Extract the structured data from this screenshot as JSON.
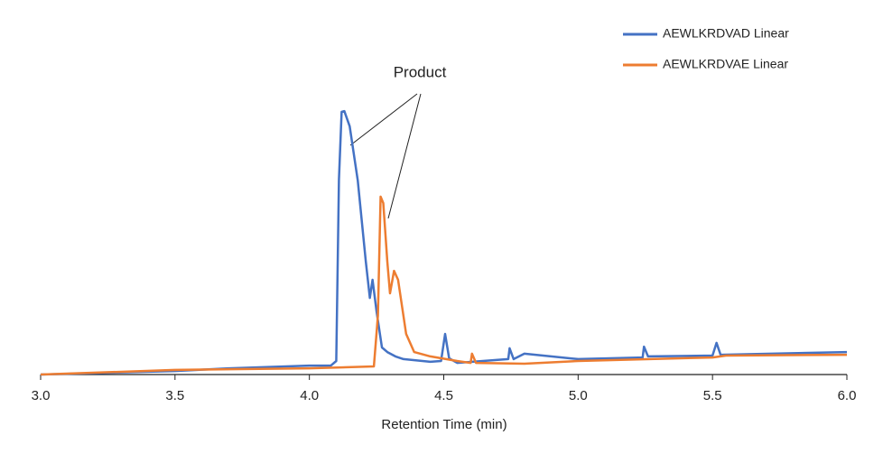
{
  "chart_data": {
    "type": "line",
    "xlabel": "Retention Time (min)",
    "annotation": "Product",
    "xlim": [
      3,
      6
    ],
    "ylim": [
      0,
      100
    ],
    "xticks": [
      {
        "value": 3,
        "label": "3.0"
      },
      {
        "value": 3.5,
        "label": "3.5"
      },
      {
        "value": 4,
        "label": "4.0"
      },
      {
        "value": 4.5,
        "label": "4.5"
      },
      {
        "value": 5,
        "label": "5.0"
      },
      {
        "value": 5.5,
        "label": "5.5"
      },
      {
        "value": 6,
        "label": "6.0"
      }
    ],
    "legend": "upper right",
    "series": [
      {
        "name": "AEWLKRDVAD Linear",
        "color": "#4472c4",
        "x": [
          3.0,
          3.5,
          3.7,
          4.0,
          4.08,
          4.1,
          4.11,
          4.12,
          4.13,
          4.15,
          4.18,
          4.21,
          4.225,
          4.235,
          4.25,
          4.27,
          4.29,
          4.32,
          4.35,
          4.45,
          4.49,
          4.505,
          4.52,
          4.55,
          4.74,
          4.745,
          4.76,
          4.8,
          5.0,
          5.24,
          5.245,
          5.26,
          5.5,
          5.515,
          5.53,
          6.0
        ],
        "values": [
          0,
          1.3,
          2.3,
          3.3,
          3.3,
          5,
          72,
          97,
          97.3,
          91.7,
          71.7,
          41.7,
          28.3,
          35,
          23.3,
          10,
          8.3,
          6.7,
          5.7,
          4.7,
          5,
          15,
          6,
          4.3,
          5.7,
          9.7,
          5.7,
          7.7,
          5.7,
          6.3,
          10.3,
          6.7,
          7,
          11.7,
          7.3,
          8.3
        ]
      },
      {
        "name": "AEWLKRDVAE Linear",
        "color": "#ed7d31",
        "x": [
          3.0,
          3.5,
          4.0,
          4.24,
          4.255,
          4.265,
          4.275,
          4.29,
          4.3,
          4.315,
          4.33,
          4.36,
          4.39,
          4.45,
          4.55,
          4.6,
          4.605,
          4.62,
          4.8,
          5.0,
          5.5,
          5.55,
          6.0
        ],
        "values": [
          0,
          1.7,
          2.3,
          3,
          21.7,
          65.7,
          63.3,
          41.7,
          30,
          38.3,
          35,
          15,
          8.3,
          6.7,
          5,
          4.3,
          7.7,
          4.3,
          4,
          5,
          6.3,
          7,
          7.3
        ]
      }
    ]
  }
}
